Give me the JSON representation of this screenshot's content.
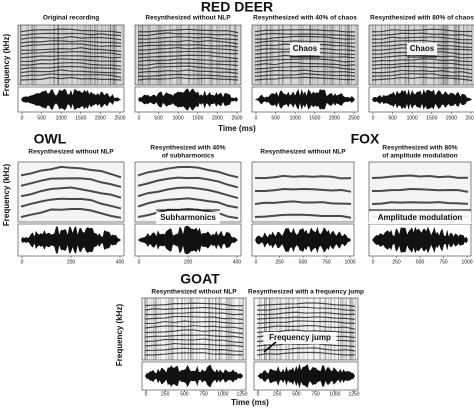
{
  "sections": [
    {
      "name": "RED DEER",
      "y_label": "Frequency (kHz)",
      "x_label": "Time (ms)",
      "x_ticks": [
        "0",
        "500",
        "1000",
        "1500",
        "2000",
        "2500"
      ],
      "panels": [
        {
          "title_lines": [
            "Original recording"
          ]
        },
        {
          "title_lines": [
            "Resynthesized without NLP"
          ]
        },
        {
          "title_lines": [
            "Resynthesized with 40% of chaos"
          ],
          "annotation": "Chaos"
        },
        {
          "title_lines": [
            "Resynthesized with 80% of chaos"
          ],
          "annotation": "Chaos"
        }
      ]
    },
    {
      "name": "OWL",
      "y_label": "Frequency (kHz)",
      "x_ticks": [
        "0",
        "200",
        "400"
      ],
      "panels": [
        {
          "title_lines": [
            "Resynthesized without NLP"
          ]
        },
        {
          "title_lines": [
            "Resynthesized with 40%",
            "of subharmonics"
          ],
          "annotation": "Subharmonics"
        }
      ]
    },
    {
      "name": "FOX",
      "x_ticks": [
        "0",
        "250",
        "500",
        "750",
        "1000"
      ],
      "panels": [
        {
          "title_lines": [
            "Resynthesized without NLP"
          ]
        },
        {
          "title_lines": [
            "Resynthesized with 80%",
            "of amplitude modulation"
          ],
          "annotation": "Amplitude modulation"
        }
      ]
    },
    {
      "name": "GOAT",
      "y_label": "Frequency (kHz)",
      "x_label": "Time (ms)",
      "x_ticks": [
        "0",
        "250",
        "500",
        "750",
        "1000",
        "1250"
      ],
      "panels": [
        {
          "title_lines": [
            "Resynthesized without NLP"
          ]
        },
        {
          "title_lines": [
            "Resynthesized with a frequency jump"
          ],
          "annotation": "Frequency jump"
        }
      ]
    }
  ]
}
